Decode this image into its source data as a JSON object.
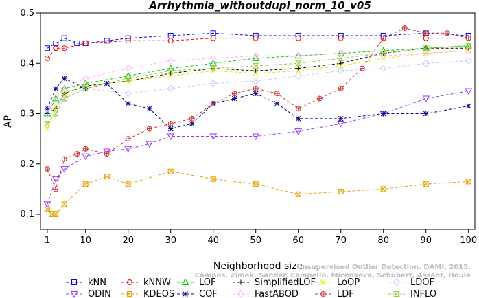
{
  "chart_data": {
    "type": "line",
    "title": "Arrhythmia_withoutdupl_norm_10_v05",
    "xlabel": "Neighborhood size",
    "ylabel": "AP",
    "xlim": [
      1,
      100
    ],
    "ylim": [
      0.07,
      0.5
    ],
    "x_ticks": [
      1,
      10,
      20,
      30,
      40,
      50,
      60,
      70,
      80,
      90,
      100
    ],
    "y_ticks": [
      0.1,
      0.2,
      0.3,
      0.4,
      0.5
    ],
    "grid": false,
    "legend_position": "bottom",
    "credit_lines": [
      "Campos, Zimek, Sander, Campello, Micenkova, Schubert, Assent, Houle",
      "Unsupervised Outlier Detection. DAMI, 2015."
    ],
    "series": [
      {
        "name": "kNN",
        "color": "#0000ff",
        "marker": "square",
        "x": [
          1,
          3,
          5,
          8,
          10,
          15,
          20,
          30,
          40,
          50,
          60,
          70,
          80,
          90,
          100
        ],
        "y": [
          0.43,
          0.44,
          0.45,
          0.44,
          0.44,
          0.445,
          0.45,
          0.455,
          0.46,
          0.455,
          0.455,
          0.455,
          0.455,
          0.46,
          0.455
        ]
      },
      {
        "name": "kNNW",
        "color": "#ff0000",
        "marker": "circle",
        "x": [
          1,
          3,
          5,
          10,
          20,
          30,
          40,
          50,
          60,
          70,
          80,
          90,
          100
        ],
        "y": [
          0.41,
          0.43,
          0.43,
          0.44,
          0.445,
          0.445,
          0.45,
          0.45,
          0.45,
          0.45,
          0.45,
          0.45,
          0.45
        ]
      },
      {
        "name": "LOF",
        "color": "#00cc00",
        "marker": "triangle-up",
        "x": [
          1,
          3,
          5,
          10,
          20,
          30,
          40,
          50,
          60,
          70,
          80,
          90,
          100
        ],
        "y": [
          0.3,
          0.33,
          0.35,
          0.36,
          0.375,
          0.39,
          0.4,
          0.41,
          0.415,
          0.42,
          0.425,
          0.43,
          0.435
        ]
      },
      {
        "name": "SimplifiedLOF",
        "color": "#000000",
        "marker": "plus",
        "x": [
          1,
          3,
          5,
          10,
          20,
          30,
          40,
          50,
          60,
          70,
          80,
          90,
          100
        ],
        "y": [
          0.3,
          0.31,
          0.34,
          0.355,
          0.365,
          0.38,
          0.39,
          0.385,
          0.39,
          0.4,
          0.42,
          0.43,
          0.43
        ]
      },
      {
        "name": "LoOP",
        "color": "#e6e600",
        "marker": "cross",
        "x": [
          1,
          3,
          5,
          10,
          20,
          30,
          40,
          50,
          60,
          70,
          80,
          90,
          100
        ],
        "y": [
          0.27,
          0.31,
          0.34,
          0.355,
          0.365,
          0.375,
          0.385,
          0.38,
          0.385,
          0.395,
          0.41,
          0.42,
          0.425
        ]
      },
      {
        "name": "LDOF",
        "color": "#c8c8ff",
        "marker": "diamond",
        "x": [
          1,
          5,
          10,
          20,
          30,
          40,
          50,
          60,
          70,
          80,
          90,
          100
        ],
        "y": [
          0.3,
          0.33,
          0.35,
          0.34,
          0.35,
          0.36,
          0.365,
          0.375,
          0.385,
          0.39,
          0.4,
          0.405
        ]
      },
      {
        "name": "ODIN",
        "color": "#9933ff",
        "marker": "triangle-down",
        "x": [
          1,
          3,
          5,
          10,
          15,
          20,
          25,
          30,
          40,
          50,
          60,
          70,
          80,
          90,
          100
        ],
        "y": [
          0.12,
          0.17,
          0.19,
          0.215,
          0.225,
          0.23,
          0.24,
          0.255,
          0.255,
          0.255,
          0.265,
          0.28,
          0.3,
          0.33,
          0.345
        ]
      },
      {
        "name": "KDEOS",
        "color": "#e6a000",
        "marker": "square-x",
        "x": [
          1,
          2,
          3,
          5,
          10,
          15,
          20,
          30,
          40,
          50,
          60,
          70,
          80,
          90,
          100
        ],
        "y": [
          0.11,
          0.1,
          0.1,
          0.12,
          0.16,
          0.175,
          0.16,
          0.185,
          0.17,
          0.16,
          0.14,
          0.145,
          0.15,
          0.16,
          0.165
        ]
      },
      {
        "name": "COF",
        "color": "#00008b",
        "marker": "asterisk",
        "x": [
          1,
          3,
          5,
          10,
          15,
          20,
          25,
          30,
          35,
          40,
          45,
          50,
          55,
          60,
          70,
          80,
          90,
          100
        ],
        "y": [
          0.31,
          0.35,
          0.37,
          0.35,
          0.36,
          0.32,
          0.31,
          0.27,
          0.28,
          0.32,
          0.33,
          0.34,
          0.32,
          0.29,
          0.29,
          0.3,
          0.3,
          0.315
        ]
      },
      {
        "name": "FastABOD",
        "color": "#ffb3ff",
        "marker": "diamond",
        "x": [
          1,
          5,
          10,
          20,
          30,
          40,
          50,
          60,
          70,
          80,
          90,
          100
        ],
        "y": [
          0.31,
          0.35,
          0.37,
          0.39,
          0.405,
          0.41,
          0.415,
          0.415,
          0.42,
          0.415,
          0.42,
          0.425
        ]
      },
      {
        "name": "LDF",
        "color": "#cc3333",
        "marker": "circle-plus",
        "x": [
          1,
          3,
          5,
          8,
          10,
          15,
          20,
          25,
          30,
          35,
          40,
          45,
          50,
          55,
          60,
          65,
          70,
          75,
          80,
          85,
          90,
          95,
          100
        ],
        "y": [
          0.19,
          0.15,
          0.21,
          0.22,
          0.23,
          0.22,
          0.25,
          0.27,
          0.28,
          0.29,
          0.32,
          0.34,
          0.35,
          0.34,
          0.31,
          0.33,
          0.35,
          0.39,
          0.45,
          0.47,
          0.46,
          0.46,
          0.45
        ]
      },
      {
        "name": "INFLO",
        "color": "#99cc33",
        "marker": "hourglass",
        "x": [
          1,
          3,
          5,
          10,
          20,
          30,
          40,
          50,
          60,
          70,
          80,
          90,
          100
        ],
        "y": [
          0.28,
          0.3,
          0.33,
          0.35,
          0.37,
          0.385,
          0.39,
          0.395,
          0.4,
          0.41,
          0.42,
          0.43,
          0.435
        ]
      }
    ],
    "legend_order": [
      "kNN",
      "kNNW",
      "LOF",
      "SimplifiedLOF",
      "LoOP",
      "LDOF",
      "ODIN",
      "KDEOS",
      "COF",
      "FastABOD",
      "LDF",
      "INFLO"
    ]
  }
}
